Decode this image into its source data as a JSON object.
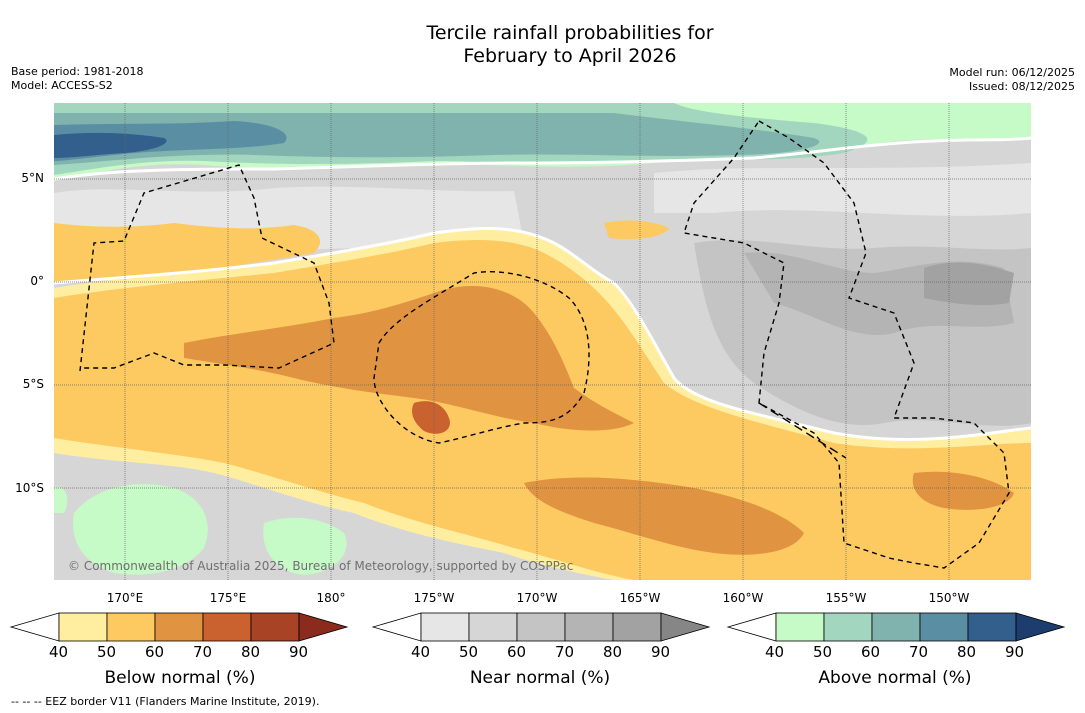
{
  "title_line1": "Tercile rainfall probabilities for",
  "title_line2": "February to April 2026",
  "base_period": "Base period: 1981-2018",
  "model": "Model: ACCESS-S2",
  "model_run": "Model run: 06/12/2025",
  "issued": "Issued: 08/12/2025",
  "copyright": "© Commonwealth of Australia 2025, Bureau of Meteorology, supported by COSPPac",
  "lat_labels": [
    "5°N",
    "0°",
    "5°S",
    "10°S"
  ],
  "lon_labels": [
    "170°E",
    "175°E",
    "180°",
    "175°W",
    "170°W",
    "165°W",
    "160°W",
    "155°W",
    "150°W"
  ],
  "colorbars": {
    "below": {
      "title": "Below normal (%)",
      "ticks": [
        "40",
        "50",
        "60",
        "70",
        "80",
        "90"
      ],
      "colors": [
        "#ffeea0",
        "#fdc961",
        "#e09340",
        "#ca6230",
        "#a84326",
        "#8b2b1e"
      ]
    },
    "near": {
      "title": "Near normal (%)",
      "ticks": [
        "40",
        "50",
        "60",
        "70",
        "80",
        "90"
      ],
      "colors": [
        "#e6e6e6",
        "#d6d6d6",
        "#c4c4c4",
        "#b4b4b4",
        "#a2a2a2",
        "#868686"
      ]
    },
    "above": {
      "title": "Above normal (%)",
      "ticks": [
        "40",
        "50",
        "60",
        "70",
        "80",
        "90"
      ],
      "colors": [
        "#c6fac6",
        "#a3d6be",
        "#80b3ad",
        "#5a8fa3",
        "#335f8d",
        "#1c3d6e"
      ]
    }
  },
  "eez_note": "-- -- -- EEZ border V11 (Flanders Marine Institute, 2019)."
}
